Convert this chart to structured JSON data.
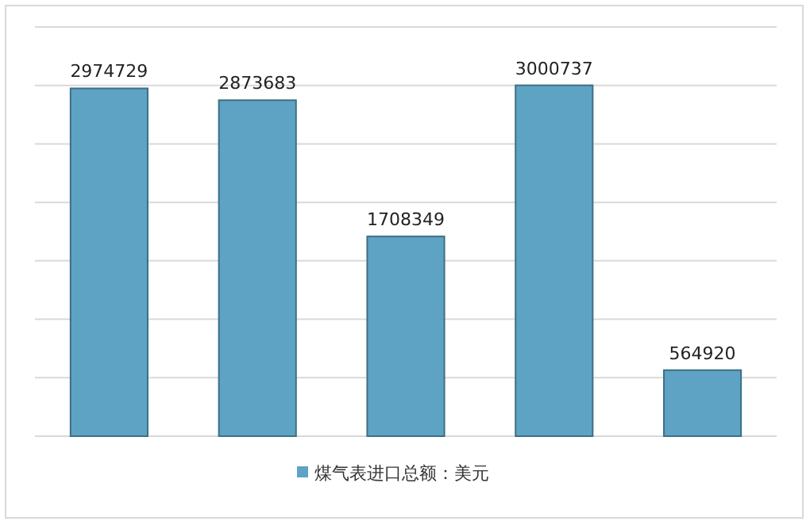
{
  "chart_data": {
    "type": "bar",
    "categories": [
      null,
      null,
      null,
      null,
      null
    ],
    "series": [
      {
        "name": "煤气表进口总额：美元",
        "color": "#5ea3c4",
        "values": [
          2974729,
          2873683,
          1708349,
          3000737,
          564920
        ]
      }
    ],
    "ylim": [
      0,
      3500000
    ],
    "yticks": [
      {
        "value": 0,
        "label": null
      },
      {
        "value": 500000,
        "label": null
      },
      {
        "value": 1000000,
        "label": null
      },
      {
        "value": 1500000,
        "label": null
      },
      {
        "value": 2000000,
        "label": null
      },
      {
        "value": 2500000,
        "label": null
      },
      {
        "value": 3000000,
        "label": null
      },
      {
        "value": 3500000,
        "label": null
      }
    ],
    "grid": "y",
    "legend": "bottom",
    "data_labels": true
  }
}
